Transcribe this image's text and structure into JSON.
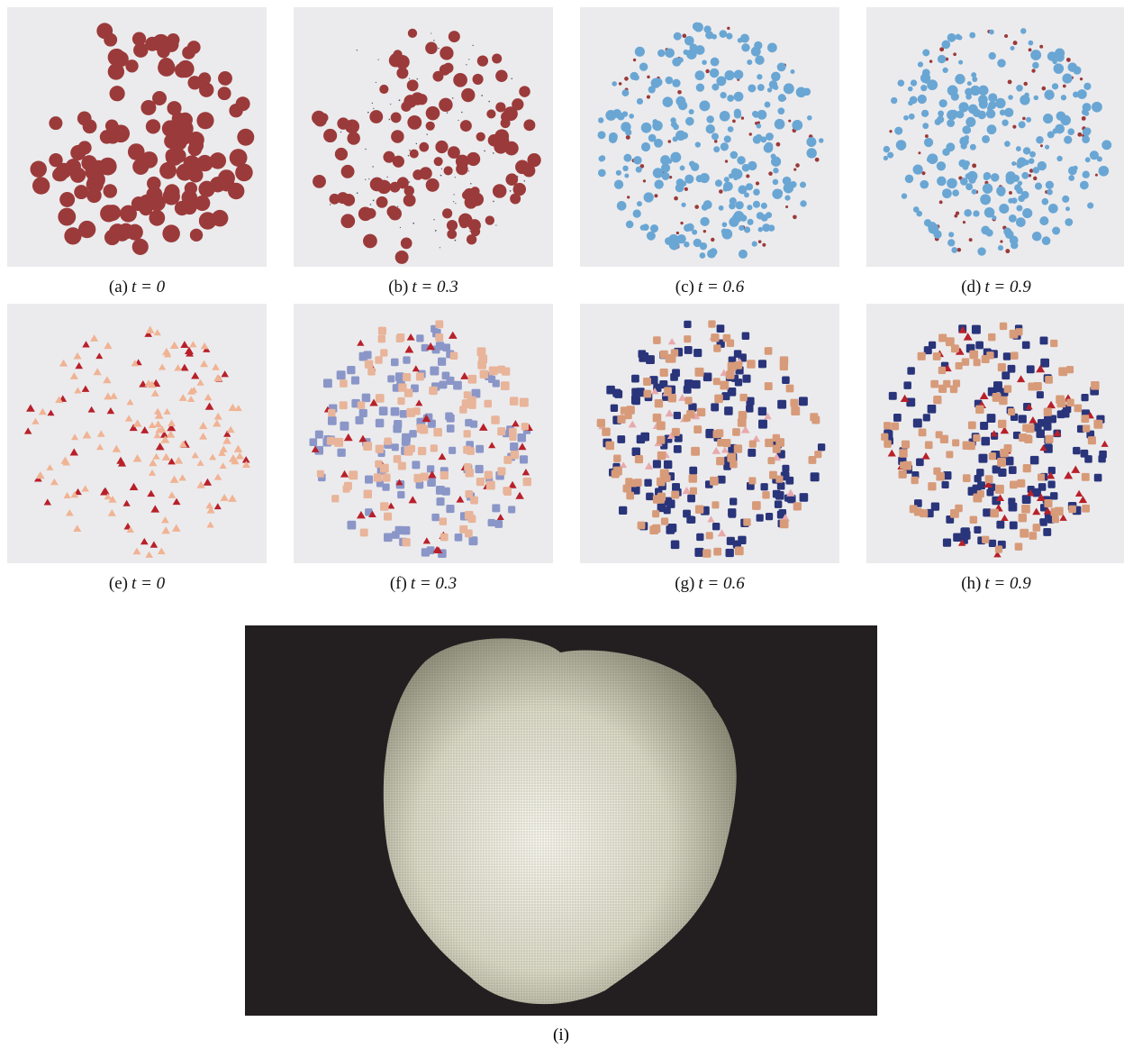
{
  "panels": [
    {
      "label": "(a)",
      "math": "t = 0"
    },
    {
      "label": "(b)",
      "math": "t = 0.3"
    },
    {
      "label": "(c)",
      "math": "t = 0.6"
    },
    {
      "label": "(d)",
      "math": "t = 0.9"
    },
    {
      "label": "(e)",
      "math": "t = 0"
    },
    {
      "label": "(f)",
      "math": "t = 0.3"
    },
    {
      "label": "(g)",
      "math": "t = 0.6"
    },
    {
      "label": "(h)",
      "math": "t = 0.9"
    }
  ],
  "bottom_panel": {
    "label": "(i)"
  }
}
